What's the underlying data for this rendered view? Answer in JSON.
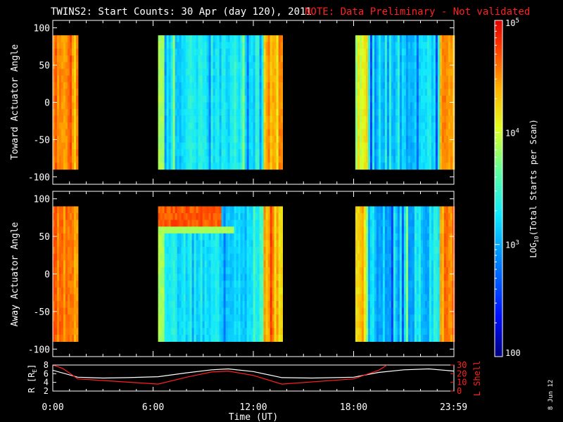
{
  "title": "TWINS2: Start Counts: 30 Apr (day 120), 2011",
  "note": "NOTE: Data Preliminary - Not validated",
  "date_stamp": "8 Jun 12",
  "colors": {
    "note": "#ff2020",
    "trace_R": "#ffffff",
    "trace_L": "#ff2020",
    "axis": "#ffffff"
  },
  "chart_data": [
    {
      "type": "heatmap",
      "ylabel": "Toward Actuator Angle",
      "ylim": [
        -110,
        110
      ],
      "yticks": [
        100,
        50,
        0,
        -50,
        -100
      ],
      "data_segments_hours": [
        [
          0.0,
          1.45
        ],
        [
          6.3,
          13.7
        ],
        [
          18.1,
          23.98
        ]
      ],
      "angle_range": [
        -90,
        90
      ]
    },
    {
      "type": "heatmap",
      "ylabel": "Away Actuator Angle",
      "ylim": [
        -110,
        110
      ],
      "yticks": [
        100,
        50,
        0,
        -50,
        -100
      ],
      "data_segments_hours": [
        [
          0.0,
          1.45
        ],
        [
          6.3,
          13.7
        ],
        [
          18.1,
          23.98
        ]
      ],
      "angle_range": [
        -90,
        90
      ]
    },
    {
      "type": "line",
      "xlabel": "Time (UT)",
      "xticks": [
        "0:00",
        "6:00",
        "12:00",
        "18:00",
        "23:59"
      ],
      "xtick_hours": [
        0,
        6,
        12,
        18,
        23.98
      ],
      "left_axis": {
        "label": "R [R",
        "label_sub": "E",
        "label_end": "]",
        "ylim": [
          2,
          8
        ],
        "ticks": [
          "8",
          "6",
          "4",
          "2"
        ]
      },
      "right_axis": {
        "label": "L Shell",
        "ylim": [
          0,
          30
        ],
        "ticks": [
          "30",
          "20",
          "10",
          "0"
        ]
      },
      "series": [
        {
          "name": "R",
          "x": [
            0,
            1.5,
            3,
            4.5,
            6.3,
            8,
            9.5,
            10.5,
            12,
            13.7,
            15.5,
            18,
            19.5,
            21,
            22.5,
            24
          ],
          "values": [
            6.8,
            5.2,
            5.0,
            5.1,
            5.3,
            6.2,
            6.9,
            7.1,
            6.5,
            5.1,
            5.0,
            5.2,
            6.3,
            6.9,
            7.1,
            6.6
          ]
        },
        {
          "name": "L",
          "x": [
            0,
            0.6,
            1.5,
            6.3,
            8,
            9.5,
            10.5,
            12,
            13.7,
            18,
            19.5,
            20
          ],
          "values": [
            30,
            26,
            14,
            8,
            16,
            22,
            23,
            18,
            8,
            14,
            24,
            30
          ]
        }
      ]
    }
  ],
  "colorbar": {
    "label_pre": "LOG",
    "label_sub": "10",
    "label_post": "(Total Starts per Scan)",
    "scale": "log",
    "range": [
      100,
      100000
    ],
    "tick_labels": [
      {
        "base": "10",
        "exp": "5",
        "value": 100000
      },
      {
        "base": "10",
        "exp": "4",
        "value": 10000
      },
      {
        "base": "10",
        "exp": "3",
        "value": 1000
      },
      {
        "base": "100",
        "exp": "",
        "value": 100
      }
    ]
  }
}
